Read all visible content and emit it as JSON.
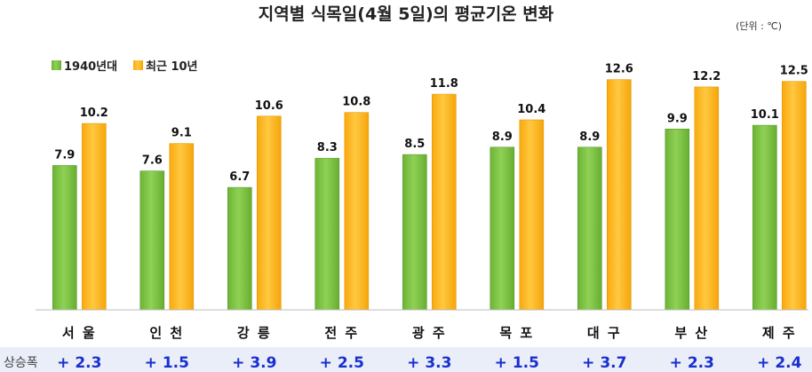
{
  "chart_data": {
    "type": "bar",
    "title": "지역별 식목일(4월 5일)의 평균기온 변화",
    "unit_note": "(단위 : ℃)",
    "categories": [
      "서 울",
      "인 천",
      "강 릉",
      "전 주",
      "광 주",
      "목 포",
      "대 구",
      "부 산",
      "제 주"
    ],
    "series": [
      {
        "name": "1940년대",
        "color": "#7ac143",
        "values": [
          7.9,
          7.6,
          6.7,
          8.3,
          8.5,
          8.9,
          8.9,
          9.9,
          10.1
        ]
      },
      {
        "name": "최근 10년",
        "color": "#ffb81c",
        "values": [
          10.2,
          9.1,
          10.6,
          10.8,
          11.8,
          10.4,
          12.6,
          12.2,
          12.5
        ]
      }
    ],
    "ylim": [
      0,
      15.5
    ],
    "legend_position": "top-left",
    "grid": false,
    "rise_row": {
      "label": "상승폭",
      "values": [
        "+ 2.3",
        "+ 1.5",
        "+ 3.9",
        "+ 2.5",
        "+ 3.3",
        "+ 1.5",
        "+ 3.7",
        "+ 2.3",
        "+ 2.4"
      ]
    }
  }
}
